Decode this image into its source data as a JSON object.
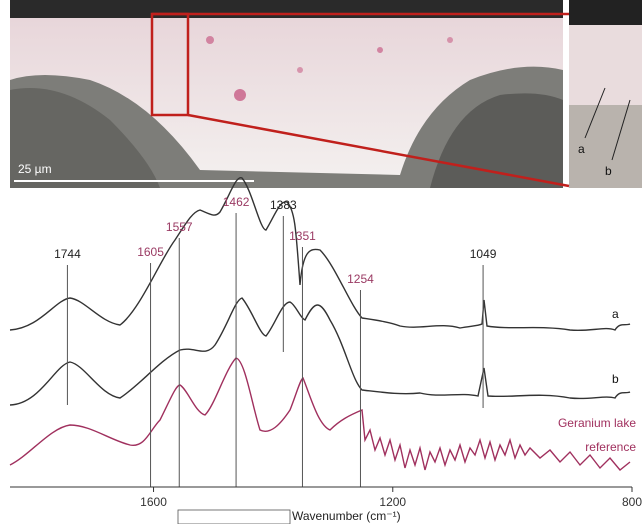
{
  "chart_data": {
    "type": "spectra",
    "image_labels": {
      "scale_bar": "25 µm",
      "a": "a",
      "b": "b"
    },
    "curve_labels": {
      "a": "a",
      "b": "b",
      "reference": [
        "Geranium lake",
        "reference"
      ]
    },
    "xlabel": "Wavenumber (cm⁻¹)",
    "xlim": [
      1840,
      800
    ],
    "xticks": [
      1600,
      1200,
      800
    ],
    "peaks": [
      1744,
      1605,
      1557,
      1462,
      1383,
      1351,
      1254,
      1049
    ],
    "peak_colors": [
      "#222222",
      "#9a3a63",
      "#9a3a63",
      "#9a3a63",
      "#222222",
      "#9a3a63",
      "#9a3a63",
      "#222222"
    ],
    "reference_color": "#a0305e",
    "sample_color": "#333333"
  }
}
